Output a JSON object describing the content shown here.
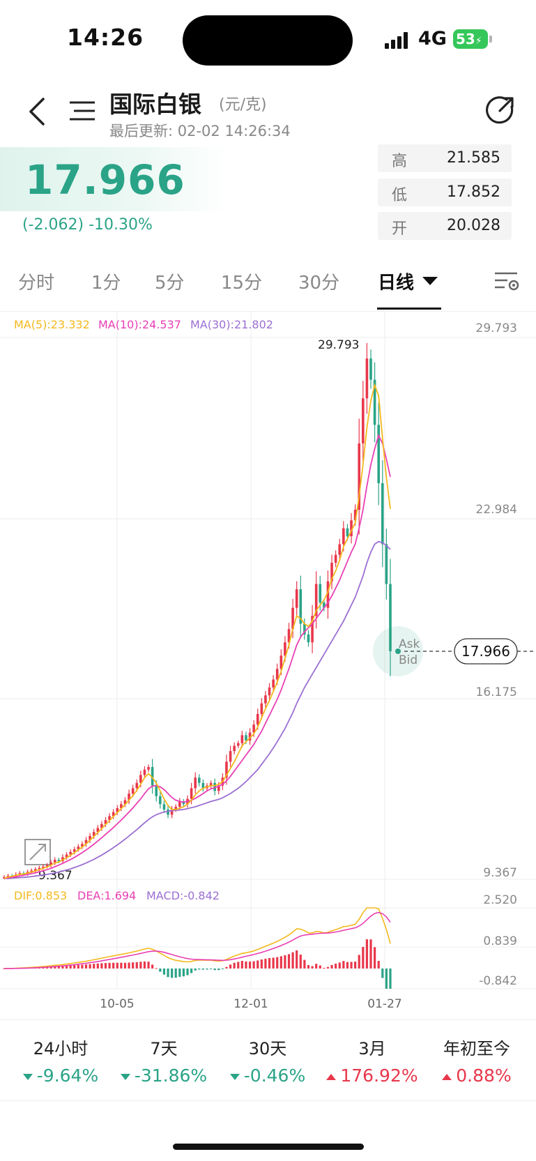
{
  "status_bar": {
    "time": "14:26",
    "network": "4G",
    "battery": "53"
  },
  "header": {
    "title": "国际白银",
    "unit": "(元/克)",
    "updated": "最后更新: 02-02 14:26:34"
  },
  "quote": {
    "price": "17.966",
    "change": "(-2.062)  -10.30%",
    "high_label": "高",
    "high": "21.585",
    "low_label": "低",
    "low": "17.852",
    "open_label": "开",
    "open": "20.028"
  },
  "tabs": [
    "分时",
    "1分",
    "5分",
    "15分",
    "30分",
    "日线"
  ],
  "active_tab": "日线",
  "chart_data": {
    "type": "candlestick",
    "y_axis_ticks": [
      "29.793",
      "22.984",
      "16.175",
      "9.367"
    ],
    "ylim": [
      9.367,
      29.793
    ],
    "x_ticks": [
      "10-05",
      "12-01",
      "01-27"
    ],
    "max_label": "29.793",
    "min_label": "9.367",
    "current_price_tag": "17.966",
    "ask_label": "Ask",
    "bid_label": "Bid",
    "ma_legend": {
      "ma5": "MA(5):23.332",
      "ma10": "MA(10):24.537",
      "ma30": "MA(30):21.802"
    },
    "macd_legend": {
      "dif": "DIF:0.853",
      "dea": "DEA:1.694",
      "macd": "MACD:-0.842"
    },
    "macd_axis_ticks": [
      "2.520",
      "0.839",
      "-0.842"
    ],
    "close": [
      9.45,
      9.5,
      9.48,
      9.55,
      9.6,
      9.58,
      9.65,
      9.7,
      9.75,
      9.8,
      9.85,
      9.9,
      10.0,
      10.1,
      10.05,
      10.2,
      10.3,
      10.4,
      10.5,
      10.6,
      10.7,
      10.85,
      11.0,
      11.15,
      11.3,
      11.45,
      11.6,
      11.75,
      11.9,
      12.05,
      12.2,
      12.35,
      12.6,
      12.8,
      13.0,
      13.3,
      13.5,
      13.6,
      12.9,
      12.5,
      12.2,
      12.0,
      11.8,
      12.0,
      12.1,
      12.3,
      12.2,
      12.4,
      12.8,
      13.2,
      13.0,
      12.8,
      12.9,
      13.0,
      12.7,
      12.9,
      13.2,
      13.8,
      14.2,
      14.4,
      14.5,
      14.8,
      14.6,
      14.9,
      15.2,
      15.6,
      16.0,
      16.3,
      16.6,
      16.9,
      17.3,
      17.8,
      18.3,
      18.8,
      19.6,
      20.3,
      19.0,
      18.6,
      18.3,
      19.3,
      20.5,
      19.8,
      19.6,
      20.6,
      21.3,
      21.6,
      22.0,
      22.6,
      22.3,
      22.9,
      23.3,
      25.8,
      27.5,
      29.0,
      28.2,
      26.5,
      24.3,
      22.0,
      20.5,
      17.966
    ],
    "ma5": [
      9.4,
      9.45,
      9.48,
      9.52,
      9.55,
      9.57,
      9.6,
      9.64,
      9.68,
      9.73,
      9.78,
      9.83,
      9.9,
      9.98,
      10.02,
      10.1,
      10.18,
      10.27,
      10.37,
      10.48,
      10.58,
      10.7,
      10.84,
      10.98,
      11.13,
      11.28,
      11.43,
      11.58,
      11.73,
      11.88,
      12.03,
      12.18,
      12.35,
      12.52,
      12.72,
      12.95,
      13.2,
      13.35,
      13.2,
      13.0,
      12.7,
      12.4,
      12.15,
      12.0,
      12.0,
      12.05,
      12.1,
      12.2,
      12.35,
      12.55,
      12.7,
      12.8,
      12.85,
      12.9,
      12.9,
      12.95,
      13.05,
      13.3,
      13.55,
      13.8,
      14.1,
      14.4,
      14.55,
      14.7,
      14.85,
      15.1,
      15.45,
      15.8,
      16.1,
      16.45,
      16.8,
      17.2,
      17.7,
      18.2,
      18.8,
      19.3,
      19.2,
      19.0,
      18.9,
      19.1,
      19.5,
      19.7,
      19.9,
      20.2,
      20.7,
      21.0,
      21.4,
      21.9,
      22.2,
      22.5,
      22.8,
      23.8,
      25.0,
      26.4,
      27.4,
      28.0,
      27.6,
      26.0,
      24.5,
      23.332
    ],
    "ma10": [
      9.4,
      9.42,
      9.44,
      9.46,
      9.49,
      9.52,
      9.55,
      9.58,
      9.61,
      9.65,
      9.69,
      9.73,
      9.78,
      9.84,
      9.9,
      9.97,
      10.04,
      10.11,
      10.19,
      10.28,
      10.37,
      10.47,
      10.58,
      10.69,
      10.81,
      10.93,
      11.06,
      11.19,
      11.32,
      11.46,
      11.6,
      11.75,
      11.9,
      12.06,
      12.23,
      12.4,
      12.6,
      12.78,
      12.88,
      12.9,
      12.85,
      12.75,
      12.6,
      12.45,
      12.35,
      12.3,
      12.28,
      12.3,
      12.35,
      12.42,
      12.5,
      12.6,
      12.7,
      12.78,
      12.82,
      12.88,
      12.95,
      13.08,
      13.25,
      13.45,
      13.65,
      13.85,
      14.05,
      14.25,
      14.45,
      14.7,
      14.95,
      15.25,
      15.55,
      15.85,
      16.15,
      16.5,
      16.9,
      17.3,
      17.75,
      18.2,
      18.5,
      18.7,
      18.85,
      19.0,
      19.2,
      19.4,
      19.6,
      19.8,
      20.05,
      20.35,
      20.65,
      21.0,
      21.35,
      21.7,
      22.0,
      22.6,
      23.3,
      24.2,
      25.0,
      25.6,
      26.1,
      25.8,
      25.2,
      24.537
    ],
    "ma30": [
      9.4,
      9.4,
      9.41,
      9.42,
      9.43,
      9.44,
      9.45,
      9.47,
      9.49,
      9.51,
      9.53,
      9.55,
      9.58,
      9.61,
      9.64,
      9.68,
      9.72,
      9.76,
      9.81,
      9.86,
      9.92,
      9.98,
      10.05,
      10.12,
      10.2,
      10.28,
      10.37,
      10.46,
      10.56,
      10.66,
      10.77,
      10.88,
      11.0,
      11.12,
      11.24,
      11.37,
      11.5,
      11.62,
      11.72,
      11.8,
      11.86,
      11.9,
      11.93,
      11.95,
      11.97,
      11.98,
      12.0,
      12.03,
      12.07,
      12.1,
      12.15,
      12.2,
      12.25,
      12.3,
      12.34,
      12.38,
      12.44,
      12.52,
      12.6,
      12.7,
      12.8,
      12.92,
      13.05,
      13.2,
      13.35,
      13.5,
      13.7,
      13.9,
      14.1,
      14.32,
      14.55,
      14.8,
      15.05,
      15.35,
      15.65,
      16.0,
      16.3,
      16.6,
      16.85,
      17.1,
      17.35,
      17.6,
      17.85,
      18.1,
      18.35,
      18.6,
      18.85,
      19.1,
      19.4,
      19.7,
      20.0,
      20.4,
      20.8,
      21.3,
      21.7,
      22.0,
      22.1,
      22.05,
      21.95,
      21.802
    ]
  },
  "colors": {
    "up": "#e8374b",
    "down": "#2aa387",
    "ma5": "#f3b81b",
    "ma10": "#e83fb4",
    "ma30": "#9b6fd2",
    "grid": "#eeeeee",
    "axis_text": "#888888"
  },
  "performance": [
    {
      "period": "24小时",
      "value": "-9.64%",
      "dir": "down"
    },
    {
      "period": "7天",
      "value": "-31.86%",
      "dir": "down"
    },
    {
      "period": "30天",
      "value": "-0.46%",
      "dir": "down"
    },
    {
      "period": "3月",
      "value": "176.92%",
      "dir": "up"
    },
    {
      "period": "年初至今",
      "value": "0.88%",
      "dir": "up"
    }
  ]
}
